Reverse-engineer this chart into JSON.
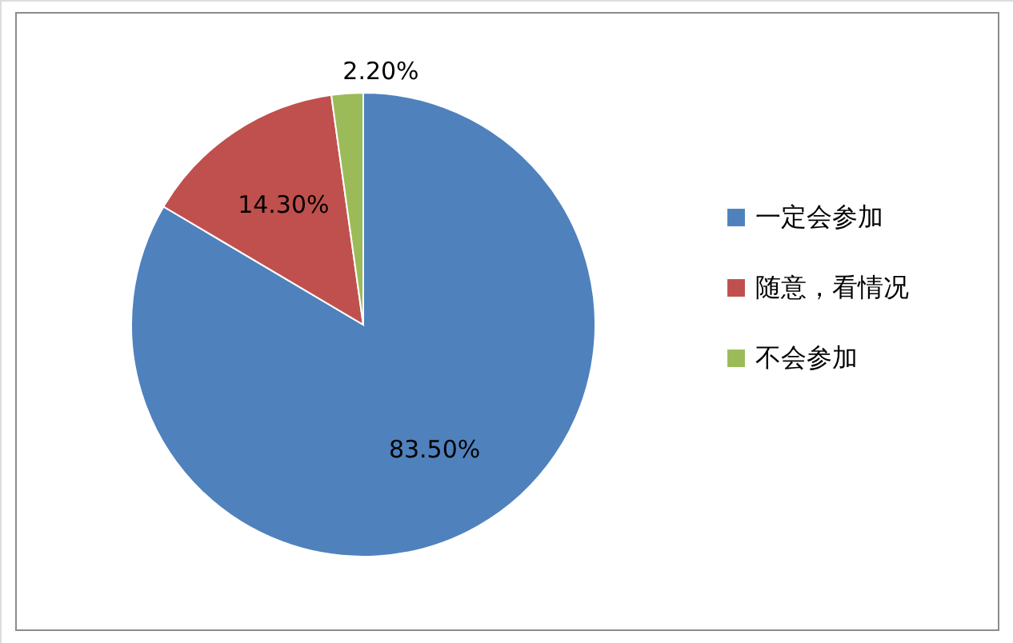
{
  "chart_data": {
    "type": "pie",
    "categories": [
      "一定会参加",
      "随意，看情况",
      "不会参加"
    ],
    "values": [
      83.5,
      14.3,
      2.2
    ],
    "colors": [
      "#4f81bd",
      "#c0504d",
      "#9bbb59"
    ],
    "value_labels": [
      "83.50%",
      "14.30%",
      "2.20%"
    ],
    "legend": "right"
  }
}
